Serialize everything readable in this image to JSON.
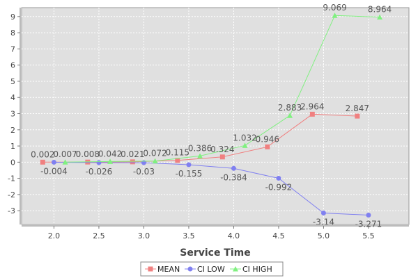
{
  "chart_data": {
    "type": "line",
    "title": "",
    "xlabel": "Service Time",
    "ylabel": "",
    "xlim": [
      1.64,
      5.95
    ],
    "ylim": [
      -3.85,
      9.55
    ],
    "xticks": [
      2.0,
      2.5,
      3.0,
      3.5,
      4.0,
      4.5,
      5.0,
      5.5
    ],
    "xtick_labels": [
      "2.0",
      "2.5",
      "3.0",
      "3.5",
      "4.0",
      "4.5",
      "5.0",
      "5.5"
    ],
    "yticks": [
      -3,
      -2,
      -1,
      0,
      1,
      2,
      3,
      4,
      5,
      6,
      7,
      8,
      9
    ],
    "ytick_labels": [
      "-3",
      "-2",
      "-1",
      "0",
      "1",
      "2",
      "3",
      "4",
      "5",
      "6",
      "7",
      "8",
      "9"
    ],
    "grid": true,
    "legend_position": "bottom-center",
    "series": [
      {
        "name": "MEAN",
        "color": "#f08080",
        "marker": "square",
        "x": [
          1.875,
          2.375,
          2.875,
          3.375,
          3.875,
          4.375,
          4.875,
          5.375
        ],
        "y": [
          0.002,
          0.008,
          0.021,
          0.115,
          0.324,
          0.946,
          2.964,
          2.847
        ],
        "labels": [
          "0.002",
          "0.008",
          "0.021",
          "0.115",
          "0.324",
          "0.946",
          "2.964",
          "2.847"
        ]
      },
      {
        "name": "CI LOW",
        "color": "#8080f0",
        "marker": "circle",
        "x": [
          2.0,
          2.5,
          3.0,
          3.5,
          4.0,
          4.5,
          5.0,
          5.5
        ],
        "y": [
          -0.004,
          -0.026,
          -0.03,
          -0.155,
          -0.384,
          -0.992,
          -3.14,
          -3.271
        ],
        "labels": [
          "-0.004",
          "-0.026",
          "-0.03",
          "-0.155",
          "-0.384",
          "-0.992",
          "-3.14",
          "-3.271"
        ]
      },
      {
        "name": "CI HIGH",
        "color": "#80f080",
        "marker": "triangle",
        "x": [
          2.125,
          2.625,
          3.125,
          3.625,
          4.125,
          4.625,
          5.125,
          5.625
        ],
        "y": [
          0.007,
          0.042,
          0.072,
          0.386,
          1.032,
          2.883,
          9.069,
          8.964
        ],
        "labels": [
          "0.007",
          "0.042",
          "0.072",
          "0.386",
          "1.032",
          "2.883",
          "9.069",
          "8.964"
        ]
      }
    ]
  },
  "colors": {
    "plot_background": "#e0e0e0",
    "gridline": "#ffffff"
  }
}
